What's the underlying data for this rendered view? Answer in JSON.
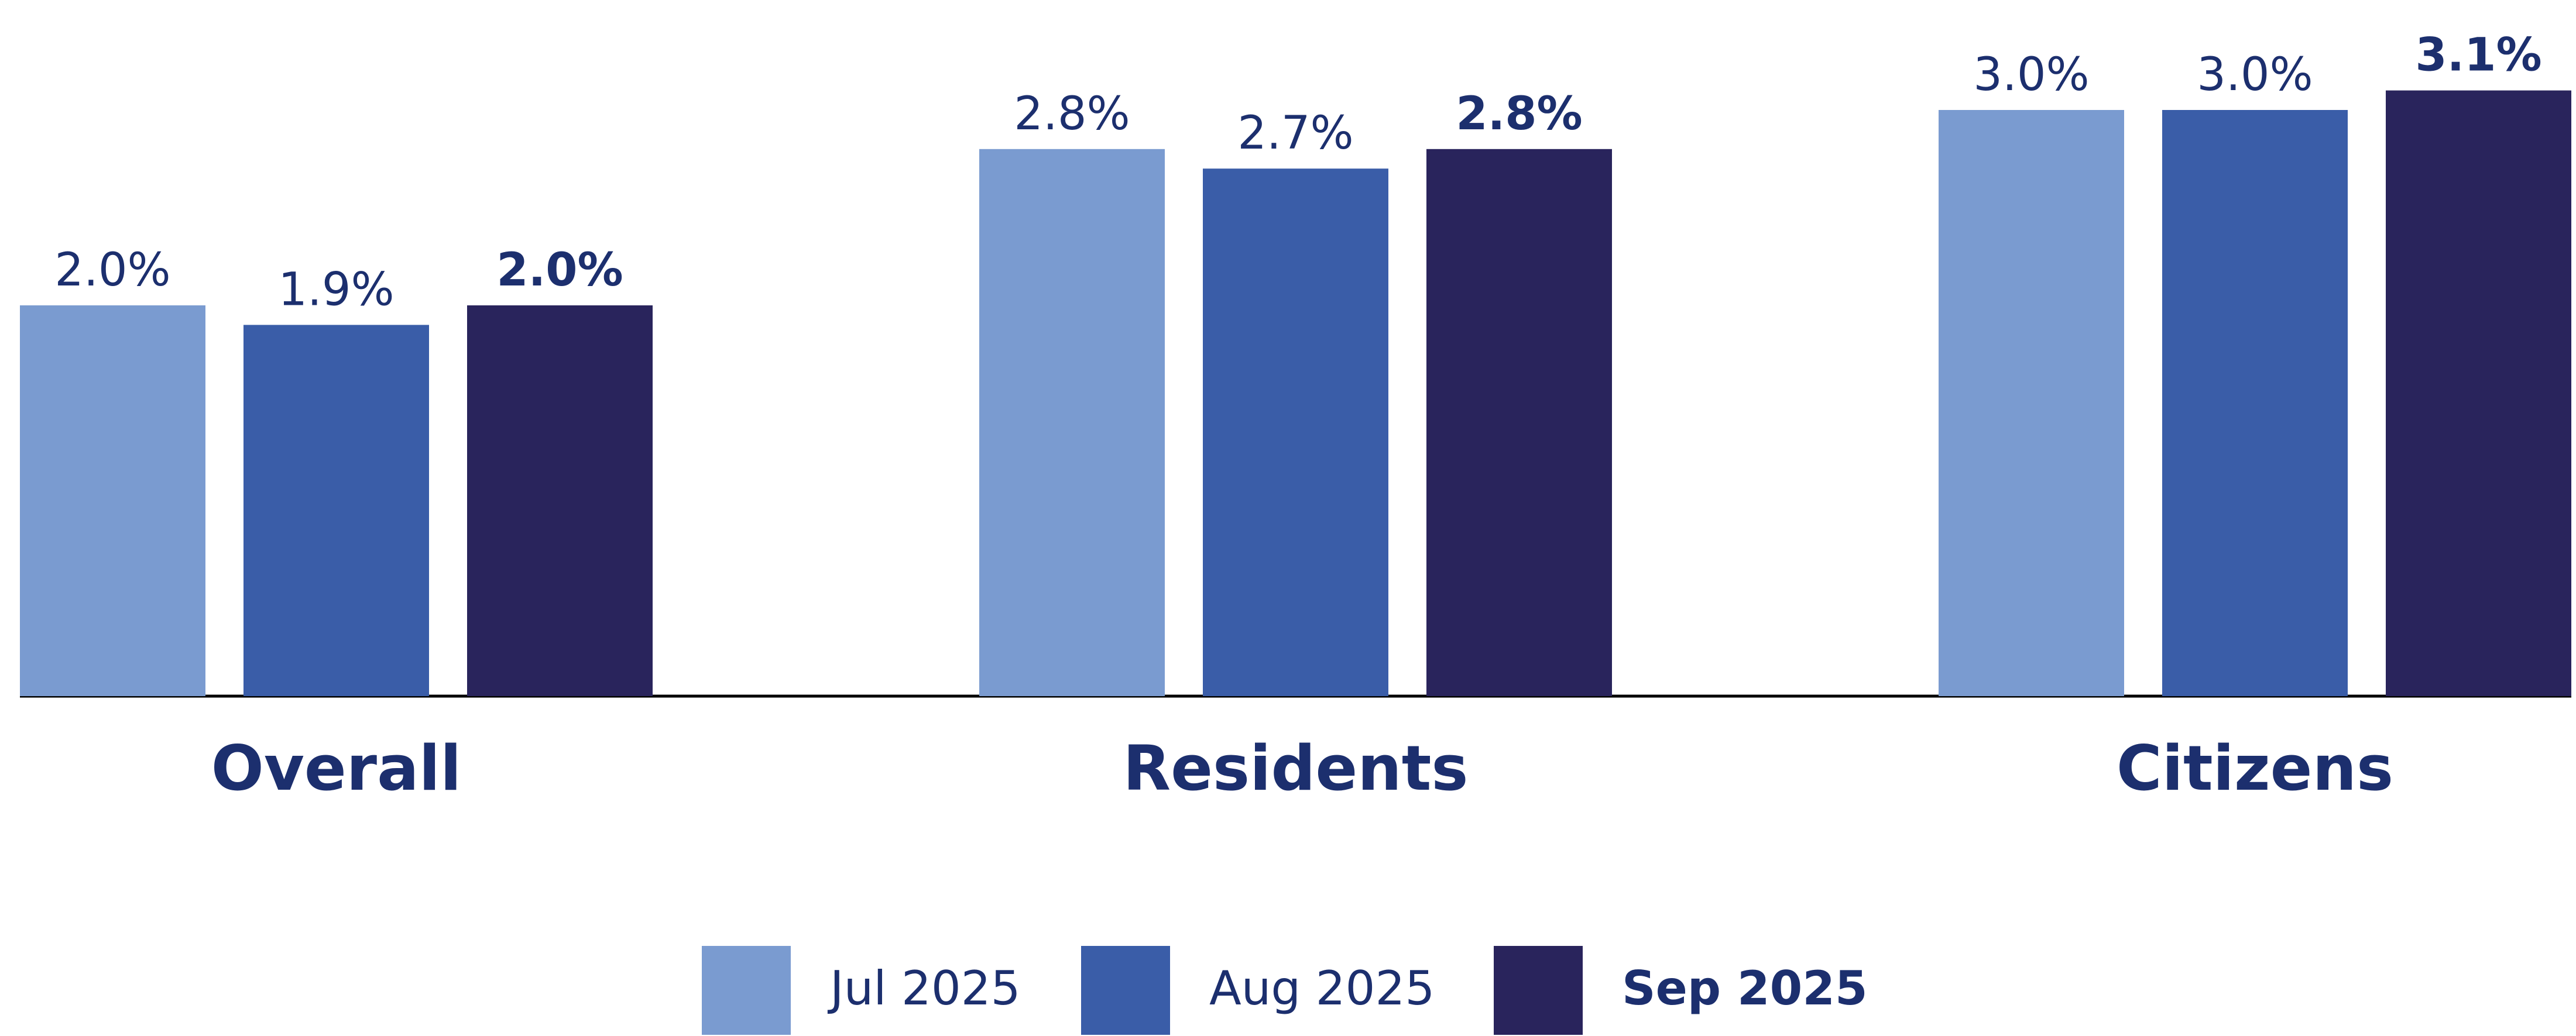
{
  "chart_data": {
    "type": "bar",
    "categories": [
      "Overall",
      "Residents",
      "Citizens"
    ],
    "series": [
      {
        "name": "Jul 2025",
        "color": "#7a9bd0",
        "values": [
          2.0,
          2.8,
          3.0
        ],
        "value_labels": [
          "2.0%",
          "2.8%",
          "3.0%"
        ]
      },
      {
        "name": "Aug 2025",
        "color": "#3a5da8",
        "values": [
          1.9,
          2.7,
          3.0
        ],
        "value_labels": [
          "1.9%",
          "2.7%",
          "3.0%"
        ]
      },
      {
        "name": "Sep 2025",
        "color": "#29245c",
        "values": [
          2.0,
          2.8,
          3.1
        ],
        "value_labels": [
          "2.0%",
          "2.8%",
          "3.1%"
        ]
      }
    ]
  }
}
